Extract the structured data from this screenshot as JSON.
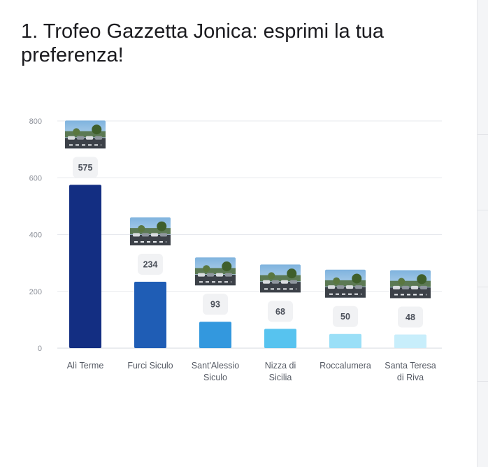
{
  "question": {
    "title": "1. Trofeo Gazzetta Jonica: esprimi la tua preferenza!"
  },
  "chart_data": {
    "type": "bar",
    "title": "",
    "xlabel": "",
    "ylabel": "",
    "ylim": [
      0,
      800
    ],
    "yticks": [
      0,
      200,
      400,
      600,
      800
    ],
    "grid": true,
    "legend": "none",
    "categories": [
      {
        "line1": "Alì Terme",
        "line2": ""
      },
      {
        "line1": "Furci Siculo",
        "line2": ""
      },
      {
        "line1": "Sant'Alessio",
        "line2": "Siculo"
      },
      {
        "line1": "Nizza di",
        "line2": "Sicilia"
      },
      {
        "line1": "Roccalumera",
        "line2": ""
      },
      {
        "line1": "Santa Teresa",
        "line2": "di Riva"
      }
    ],
    "values": [
      575,
      234,
      93,
      68,
      50,
      48
    ],
    "colors": [
      "#132e82",
      "#1f5db5",
      "#3398de",
      "#57c3ef",
      "#9adff7",
      "#c8eefb"
    ],
    "thumbnails": [
      "street-photo-thumbnail",
      "street-photo-thumbnail",
      "street-photo-thumbnail",
      "street-photo-thumbnail",
      "street-photo-thumbnail",
      "street-photo-thumbnail"
    ]
  }
}
